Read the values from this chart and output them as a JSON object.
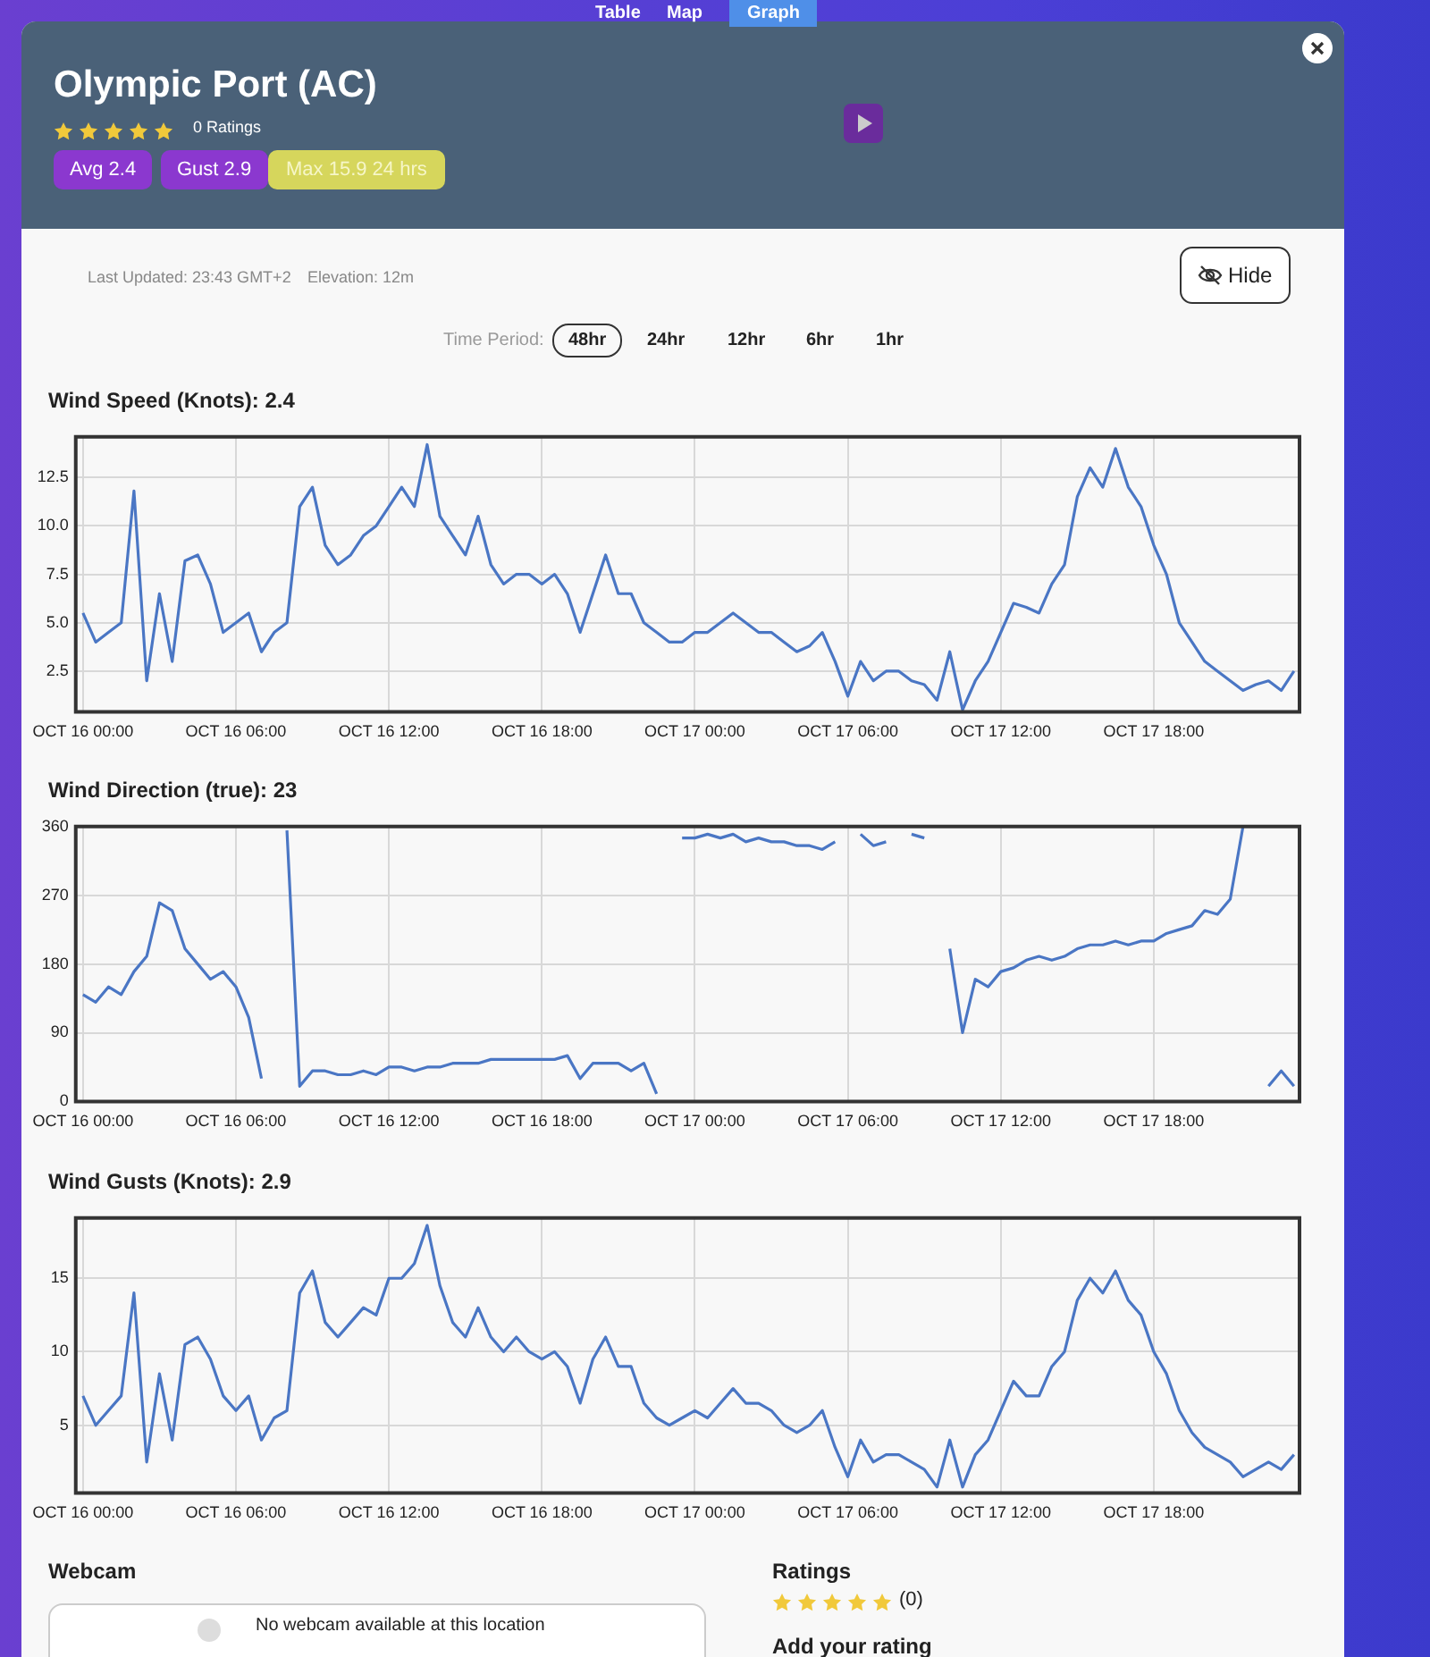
{
  "chart_data": [
    {
      "type": "line",
      "title": "Wind Speed (Knots): 2.4",
      "annotations": [
        "Table",
        "Map",
        "Graph",
        "Olympic Port (AC)",
        "0 Ratings",
        "Avg 2.4",
        "Gust 2.9",
        "Max 15.9 24 hrs",
        "Last Updated: 23:43 GMT+2",
        "Elevation: 12m",
        "Time Period:",
        "48hr",
        "24hr",
        "12hr",
        "6hr",
        "1hr",
        "Hide"
      ],
      "x": [
        "--10-16T00:00",
        "--10-16T00:30",
        "--10-16T01:00",
        "--10-16T01:30",
        "--10-16T02:00",
        "--10-16T02:30",
        "--10-16T03:00",
        "--10-16T03:30",
        "--10-16T04:00",
        "--10-16T04:30",
        "--10-16T05:00",
        "--10-16T05:30",
        "--10-16T06:00",
        "--10-16T06:30",
        "--10-16T07:00",
        "--10-16T07:30",
        "--10-16T08:00",
        "--10-16T08:30",
        "--10-16T09:00",
        "--10-16T09:30",
        "--10-16T10:00",
        "--10-16T10:30",
        "--10-16T11:00",
        "--10-16T11:30",
        "--10-16T12:00",
        "--10-16T12:30",
        "--10-16T13:00",
        "--10-16T13:30",
        "--10-16T14:00",
        "--10-16T14:30",
        "--10-16T15:00",
        "--10-16T15:30",
        "--10-16T16:00",
        "--10-16T16:30",
        "--10-16T17:00",
        "--10-16T17:30",
        "--10-16T18:00",
        "--10-16T18:30",
        "--10-16T19:00",
        "--10-16T19:30",
        "--10-16T20:00",
        "--10-16T20:30",
        "--10-16T21:00",
        "--10-16T21:30",
        "--10-16T22:00",
        "--10-16T22:30",
        "--10-16T23:00",
        "--10-16T23:30",
        "--10-17T00:00",
        "--10-17T00:30",
        "--10-17T01:00",
        "--10-17T01:30",
        "--10-17T02:00",
        "--10-17T02:30",
        "--10-17T03:00",
        "--10-17T03:30",
        "--10-17T04:00",
        "--10-17T04:30",
        "--10-17T05:00",
        "--10-17T05:30",
        "--10-17T06:00",
        "--10-17T06:30",
        "--10-17T07:00",
        "--10-17T07:30",
        "--10-17T08:00",
        "--10-17T08:30",
        "--10-17T09:00",
        "--10-17T09:30",
        "--10-17T10:00",
        "--10-17T10:30",
        "--10-17T11:00",
        "--10-17T11:30",
        "--10-17T12:00",
        "--10-17T12:30",
        "--10-17T13:00",
        "--10-17T13:30",
        "--10-17T14:00",
        "--10-17T14:30",
        "--10-17T15:00",
        "--10-17T15:30",
        "--10-17T16:00",
        "--10-17T16:30",
        "--10-17T17:00",
        "--10-17T17:30",
        "--10-17T18:00",
        "--10-17T18:30",
        "--10-17T19:00",
        "--10-17T19:30",
        "--10-17T20:00",
        "--10-17T20:30",
        "--10-17T21:00",
        "--10-17T21:30",
        "--10-17T22:00",
        "--10-17T22:30",
        "--10-17T23:00",
        "--10-17T23:30"
      ],
      "series": [
        {
          "color": "#4a76c4",
          "values": [
            5.5,
            4.0,
            4.5,
            5.0,
            11.8,
            2.0,
            6.5,
            3.0,
            8.2,
            8.5,
            7.0,
            4.5,
            5.0,
            5.5,
            3.5,
            4.5,
            5.0,
            11.0,
            12.0,
            9.0,
            8.0,
            8.5,
            9.5,
            10.0,
            11.0,
            12.0,
            11.0,
            14.2,
            10.5,
            9.5,
            8.5,
            10.5,
            8.0,
            7.0,
            7.5,
            7.5,
            7.0,
            7.5,
            6.5,
            4.5,
            6.5,
            8.5,
            6.5,
            6.5,
            5.0,
            4.5,
            4.0,
            4.0,
            4.5,
            4.5,
            5.0,
            5.5,
            5.0,
            4.5,
            4.5,
            4.0,
            3.5,
            3.8,
            4.5,
            3.0,
            1.2,
            3.0,
            2.0,
            2.5,
            2.5,
            2.0,
            1.8,
            1.0,
            3.5,
            0.5,
            2.0,
            3.0,
            4.5,
            6.0,
            5.8,
            5.5,
            7.0,
            8.0,
            11.5,
            13.0,
            12.0,
            14.0,
            12.0,
            11.0,
            9.0,
            7.5,
            5.0,
            4.0,
            3.0,
            2.5,
            2.0,
            1.5,
            1.8,
            2.0,
            1.5,
            2.5
          ]
        }
      ],
      "xlim": [
        "--10-15T23:43",
        "--10-17T23:43"
      ],
      "xticks": [
        {
          "value": "--10-16T00:00",
          "label": "OCT 16 00:00"
        },
        {
          "value": "--10-16T06:00",
          "label": "OCT 16 06:00"
        },
        {
          "value": "--10-16T12:00",
          "label": "OCT 16 12:00"
        },
        {
          "value": "--10-16T18:00",
          "label": "OCT 16 18:00"
        },
        {
          "value": "--10-17T00:00",
          "label": "OCT 17 00:00"
        },
        {
          "value": "--10-17T06:00",
          "label": "OCT 17 06:00"
        },
        {
          "value": "--10-17T12:00",
          "label": "OCT 17 12:00"
        },
        {
          "value": "--10-17T18:00",
          "label": "OCT 17 18:00"
        }
      ],
      "ylim": [
        0.4,
        14.6
      ],
      "yticks": [
        2.5,
        {
          "value": 5,
          "label": "5.0"
        },
        7.5,
        {
          "value": 10,
          "label": "10.0"
        },
        12.5
      ],
      "grid": true,
      "legend": false,
      "marker": "none"
    },
    {
      "type": "line",
      "title": "Wind Direction (true): 23",
      "x": [
        "--10-16T00:00",
        "--10-16T00:30",
        "--10-16T01:00",
        "--10-16T01:30",
        "--10-16T02:00",
        "--10-16T02:30",
        "--10-16T03:00",
        "--10-16T03:30",
        "--10-16T04:00",
        "--10-16T04:30",
        "--10-16T05:00",
        "--10-16T05:30",
        "--10-16T06:00",
        "--10-16T06:30",
        "--10-16T07:00",
        "--10-16T07:30",
        "--10-16T08:00",
        "--10-16T08:30",
        "--10-16T09:00",
        "--10-16T09:30",
        "--10-16T10:00",
        "--10-16T10:30",
        "--10-16T11:00",
        "--10-16T11:30",
        "--10-16T12:00",
        "--10-16T12:30",
        "--10-16T13:00",
        "--10-16T13:30",
        "--10-16T14:00",
        "--10-16T14:30",
        "--10-16T15:00",
        "--10-16T15:30",
        "--10-16T16:00",
        "--10-16T16:30",
        "--10-16T17:00",
        "--10-16T17:30",
        "--10-16T18:00",
        "--10-16T18:30",
        "--10-16T19:00",
        "--10-16T19:30",
        "--10-16T20:00",
        "--10-16T20:30",
        "--10-16T21:00",
        "--10-16T21:30",
        "--10-16T22:00",
        "--10-16T22:30",
        "--10-16T23:00",
        "--10-16T23:30",
        "--10-17T00:00",
        "--10-17T00:30",
        "--10-17T01:00",
        "--10-17T01:30",
        "--10-17T02:00",
        "--10-17T02:30",
        "--10-17T03:00",
        "--10-17T03:30",
        "--10-17T04:00",
        "--10-17T04:30",
        "--10-17T05:00",
        "--10-17T05:30",
        "--10-17T06:00",
        "--10-17T06:30",
        "--10-17T07:00",
        "--10-17T07:30",
        "--10-17T08:00",
        "--10-17T08:30",
        "--10-17T09:00",
        "--10-17T09:30",
        "--10-17T10:00",
        "--10-17T10:30",
        "--10-17T11:00",
        "--10-17T11:30",
        "--10-17T12:00",
        "--10-17T12:30",
        "--10-17T13:00",
        "--10-17T13:30",
        "--10-17T14:00",
        "--10-17T14:30",
        "--10-17T15:00",
        "--10-17T15:30",
        "--10-17T16:00",
        "--10-17T16:30",
        "--10-17T17:00",
        "--10-17T17:30",
        "--10-17T18:00",
        "--10-17T18:30",
        "--10-17T19:00",
        "--10-17T19:30",
        "--10-17T20:00",
        "--10-17T20:30",
        "--10-17T21:00",
        "--10-17T21:30",
        "--10-17T22:00",
        "--10-17T22:30",
        "--10-17T23:00",
        "--10-17T23:30"
      ],
      "series": [
        {
          "color": "#4a76c4",
          "values": [
            140,
            130,
            150,
            140,
            170,
            190,
            260,
            250,
            200,
            180,
            160,
            170,
            150,
            110,
            30,
            null,
            355,
            20,
            40,
            40,
            35,
            35,
            40,
            35,
            45,
            45,
            40,
            45,
            45,
            50,
            50,
            50,
            55,
            55,
            55,
            55,
            55,
            55,
            60,
            30,
            50,
            50,
            50,
            40,
            50,
            10,
            null,
            345,
            345,
            350,
            345,
            350,
            340,
            345,
            340,
            340,
            335,
            335,
            330,
            340,
            null,
            350,
            335,
            340,
            null,
            350,
            345,
            null,
            200,
            90,
            160,
            150,
            170,
            175,
            185,
            190,
            185,
            190,
            200,
            205,
            205,
            210,
            205,
            210,
            210,
            220,
            225,
            230,
            250,
            245,
            265,
            360,
            null,
            20,
            40,
            20
          ]
        }
      ],
      "xlim": [
        "--10-15T23:43",
        "--10-17T23:43"
      ],
      "xticks": [
        {
          "value": "--10-16T00:00",
          "label": "OCT 16 00:00"
        },
        {
          "value": "--10-16T06:00",
          "label": "OCT 16 06:00"
        },
        {
          "value": "--10-16T12:00",
          "label": "OCT 16 12:00"
        },
        {
          "value": "--10-16T18:00",
          "label": "OCT 16 18:00"
        },
        {
          "value": "--10-17T00:00",
          "label": "OCT 17 00:00"
        },
        {
          "value": "--10-17T06:00",
          "label": "OCT 17 06:00"
        },
        {
          "value": "--10-17T12:00",
          "label": "OCT 17 12:00"
        },
        {
          "value": "--10-17T18:00",
          "label": "OCT 17 18:00"
        }
      ],
      "ylim": [
        0,
        360
      ],
      "yticks": [
        0,
        90,
        180,
        270,
        360
      ],
      "grid": true,
      "legend": false,
      "marker": "none"
    },
    {
      "type": "line",
      "title": "Wind Gusts (Knots): 2.9",
      "annotations": [
        "Webcam",
        "No webcam available at this location",
        "Ratings",
        "(0)",
        "Add your rating"
      ],
      "x": [
        "--10-16T00:00",
        "--10-16T00:30",
        "--10-16T01:00",
        "--10-16T01:30",
        "--10-16T02:00",
        "--10-16T02:30",
        "--10-16T03:00",
        "--10-16T03:30",
        "--10-16T04:00",
        "--10-16T04:30",
        "--10-16T05:00",
        "--10-16T05:30",
        "--10-16T06:00",
        "--10-16T06:30",
        "--10-16T07:00",
        "--10-16T07:30",
        "--10-16T08:00",
        "--10-16T08:30",
        "--10-16T09:00",
        "--10-16T09:30",
        "--10-16T10:00",
        "--10-16T10:30",
        "--10-16T11:00",
        "--10-16T11:30",
        "--10-16T12:00",
        "--10-16T12:30",
        "--10-16T13:00",
        "--10-16T13:30",
        "--10-16T14:00",
        "--10-16T14:30",
        "--10-16T15:00",
        "--10-16T15:30",
        "--10-16T16:00",
        "--10-16T16:30",
        "--10-16T17:00",
        "--10-16T17:30",
        "--10-16T18:00",
        "--10-16T18:30",
        "--10-16T19:00",
        "--10-16T19:30",
        "--10-16T20:00",
        "--10-16T20:30",
        "--10-16T21:00",
        "--10-16T21:30",
        "--10-16T22:00",
        "--10-16T22:30",
        "--10-16T23:00",
        "--10-16T23:30",
        "--10-17T00:00",
        "--10-17T00:30",
        "--10-17T01:00",
        "--10-17T01:30",
        "--10-17T02:00",
        "--10-17T02:30",
        "--10-17T03:00",
        "--10-17T03:30",
        "--10-17T04:00",
        "--10-17T04:30",
        "--10-17T05:00",
        "--10-17T05:30",
        "--10-17T06:00",
        "--10-17T06:30",
        "--10-17T07:00",
        "--10-17T07:30",
        "--10-17T08:00",
        "--10-17T08:30",
        "--10-17T09:00",
        "--10-17T09:30",
        "--10-17T10:00",
        "--10-17T10:30",
        "--10-17T11:00",
        "--10-17T11:30",
        "--10-17T12:00",
        "--10-17T12:30",
        "--10-17T13:00",
        "--10-17T13:30",
        "--10-17T14:00",
        "--10-17T14:30",
        "--10-17T15:00",
        "--10-17T15:30",
        "--10-17T16:00",
        "--10-17T16:30",
        "--10-17T17:00",
        "--10-17T17:30",
        "--10-17T18:00",
        "--10-17T18:30",
        "--10-17T19:00",
        "--10-17T19:30",
        "--10-17T20:00",
        "--10-17T20:30",
        "--10-17T21:00",
        "--10-17T21:30",
        "--10-17T22:00",
        "--10-17T22:30",
        "--10-17T23:00",
        "--10-17T23:30"
      ],
      "series": [
        {
          "color": "#4a76c4",
          "values": [
            7,
            5,
            6,
            7,
            14,
            2.5,
            8.5,
            4,
            10.5,
            11,
            9.5,
            7,
            6,
            7,
            4,
            5.5,
            6,
            14,
            15.5,
            12,
            11,
            12,
            13,
            12.5,
            15,
            15,
            16,
            18.6,
            14.5,
            12,
            11,
            13,
            11,
            10,
            11,
            10,
            9.5,
            10,
            9,
            6.5,
            9.5,
            11,
            9,
            9,
            6.5,
            5.5,
            5,
            5.5,
            6,
            5.5,
            6.5,
            7.5,
            6.5,
            6.5,
            6,
            5,
            4.5,
            5,
            6,
            3.5,
            1.5,
            4,
            2.5,
            3,
            3,
            2.5,
            2,
            0.8,
            4,
            0.8,
            3,
            4,
            6,
            8,
            7,
            7,
            9,
            10,
            13.5,
            15,
            14,
            15.5,
            13.5,
            12.5,
            10,
            8.5,
            6,
            4.5,
            3.5,
            3,
            2.5,
            1.5,
            2,
            2.5,
            2,
            3
          ]
        }
      ],
      "xlim": [
        "--10-15T23:43",
        "--10-17T23:43"
      ],
      "xticks": [
        {
          "value": "--10-16T00:00",
          "label": "OCT 16 00:00"
        },
        {
          "value": "--10-16T06:00",
          "label": "OCT 16 06:00"
        },
        {
          "value": "--10-16T12:00",
          "label": "OCT 16 12:00"
        },
        {
          "value": "--10-16T18:00",
          "label": "OCT 16 18:00"
        },
        {
          "value": "--10-17T00:00",
          "label": "OCT 17 00:00"
        },
        {
          "value": "--10-17T06:00",
          "label": "OCT 17 06:00"
        },
        {
          "value": "--10-17T12:00",
          "label": "OCT 17 12:00"
        },
        {
          "value": "--10-17T18:00",
          "label": "OCT 17 18:00"
        }
      ],
      "ylim": [
        0.4,
        19.1
      ],
      "yticks": [
        5,
        10,
        15
      ],
      "grid": true,
      "legend": false,
      "marker": "none"
    }
  ]
}
